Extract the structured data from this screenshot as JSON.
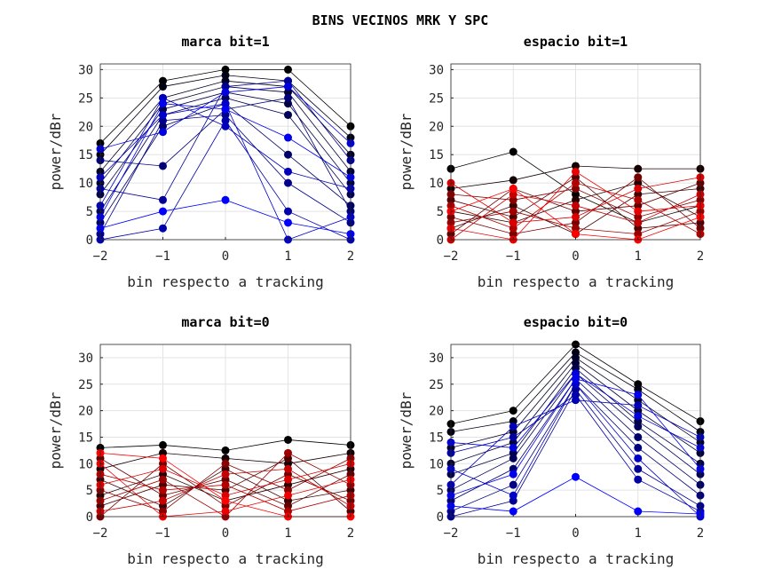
{
  "figure_title": "BINS VECINOS MRK Y SPC",
  "chart_data": [
    {
      "type": "line",
      "title": "marca bit=1",
      "xlabel": "bin respecto a tracking",
      "ylabel": "power/dBr",
      "x": [
        -2,
        -1,
        0,
        1,
        2
      ],
      "xlim": [
        -2,
        2
      ],
      "ylim": [
        0,
        31
      ],
      "xticks": [
        -2,
        -1,
        0,
        1,
        2
      ],
      "yticks": [
        0,
        5,
        10,
        15,
        20,
        25,
        30
      ],
      "grid": true,
      "color_from": "#000000",
      "color_to": "#0000ff",
      "series": [
        [
          17,
          28,
          30,
          30,
          20
        ],
        [
          15,
          27,
          29,
          28,
          18
        ],
        [
          12,
          25,
          28,
          27,
          15
        ],
        [
          10,
          24,
          27,
          26,
          12
        ],
        [
          8,
          23,
          26,
          24,
          10
        ],
        [
          5,
          22,
          25,
          22,
          8
        ],
        [
          3,
          20,
          24,
          15,
          6
        ],
        [
          14,
          13,
          23,
          25,
          5
        ],
        [
          1,
          21,
          22,
          10,
          3
        ],
        [
          9,
          7,
          27,
          28,
          14
        ],
        [
          0,
          2,
          21,
          5,
          0
        ],
        [
          6,
          25,
          20,
          12,
          9
        ],
        [
          11,
          22,
          24,
          0,
          4
        ],
        [
          16,
          19,
          26,
          27,
          17
        ],
        [
          4,
          24,
          23,
          18,
          11
        ],
        [
          2,
          5,
          7,
          3,
          1
        ]
      ]
    },
    {
      "type": "line",
      "title": "espacio bit=1",
      "xlabel": "bin respecto a tracking",
      "ylabel": "power/dBr",
      "x": [
        -2,
        -1,
        0,
        1,
        2
      ],
      "xlim": [
        -2,
        2
      ],
      "ylim": [
        0,
        31
      ],
      "xticks": [
        -2,
        -1,
        0,
        1,
        2
      ],
      "yticks": [
        0,
        5,
        10,
        15,
        20,
        25,
        30
      ],
      "grid": true,
      "color_from": "#000000",
      "color_to": "#ff0000",
      "series": [
        [
          12.5,
          15.5,
          8,
          3,
          6
        ],
        [
          9,
          10.5,
          13,
          12.5,
          12.5
        ],
        [
          5,
          3,
          7,
          10,
          4
        ],
        [
          2,
          6,
          1,
          8,
          9
        ],
        [
          7,
          4,
          11,
          2,
          3
        ],
        [
          1,
          9,
          5,
          6,
          10
        ],
        [
          4,
          1,
          3,
          11,
          2
        ],
        [
          8,
          7,
          9,
          4,
          7
        ],
        [
          3,
          5,
          2,
          1,
          5
        ],
        [
          6,
          2,
          10,
          7,
          1
        ],
        [
          0,
          8,
          6,
          3,
          8
        ],
        [
          10,
          3,
          4,
          9,
          11
        ],
        [
          2,
          0,
          12,
          5,
          6
        ],
        [
          5,
          9,
          1,
          0,
          4
        ]
      ]
    },
    {
      "type": "line",
      "title": "marca bit=0",
      "xlabel": "bin respecto a tracking",
      "ylabel": "power/dBr",
      "x": [
        -2,
        -1,
        0,
        1,
        2
      ],
      "xlim": [
        -2,
        2
      ],
      "ylim": [
        0,
        32.5
      ],
      "xticks": [
        -2,
        -1,
        0,
        1,
        2
      ],
      "yticks": [
        0,
        5,
        10,
        15,
        20,
        25,
        30
      ],
      "grid": true,
      "color_from": "#000000",
      "color_to": "#ff0000",
      "series": [
        [
          13,
          13.5,
          12.5,
          14.5,
          13.5
        ],
        [
          9,
          12,
          11,
          10,
          12
        ],
        [
          4,
          8,
          3,
          6,
          9
        ],
        [
          7,
          2,
          9,
          3,
          5
        ],
        [
          2,
          6,
          5,
          11,
          1
        ],
        [
          11,
          4,
          7,
          2,
          8
        ],
        [
          0,
          10,
          2,
          8,
          3
        ],
        [
          5,
          1,
          10,
          5,
          11
        ],
        [
          3,
          7,
          0,
          12,
          6
        ],
        [
          8,
          5,
          6,
          1,
          4
        ],
        [
          1,
          3,
          8,
          9,
          2
        ],
        [
          6,
          9,
          4,
          7,
          10
        ],
        [
          10,
          0,
          1,
          4,
          7
        ],
        [
          12,
          11,
          3,
          0,
          0
        ]
      ]
    },
    {
      "type": "line",
      "title": "espacio bit=0",
      "xlabel": "bin respecto a tracking",
      "ylabel": "power/dBr",
      "x": [
        -2,
        -1,
        0,
        1,
        2
      ],
      "xlim": [
        -2,
        2
      ],
      "ylim": [
        0,
        32.5
      ],
      "xticks": [
        -2,
        -1,
        0,
        1,
        2
      ],
      "yticks": [
        0,
        5,
        10,
        15,
        20,
        25,
        30
      ],
      "grid": true,
      "color_from": "#000000",
      "color_to": "#0000ff",
      "series": [
        [
          17.5,
          20,
          32.5,
          25,
          18
        ],
        [
          16,
          18,
          31,
          24,
          16
        ],
        [
          13,
          16,
          30,
          22,
          14
        ],
        [
          10,
          14,
          29,
          20,
          12
        ],
        [
          8,
          12,
          28,
          18,
          10
        ],
        [
          5,
          11,
          27,
          17,
          8
        ],
        [
          3,
          9,
          26,
          15,
          6
        ],
        [
          1,
          6,
          25,
          13,
          4
        ],
        [
          0,
          3,
          24,
          9,
          2
        ],
        [
          12,
          15,
          23,
          7,
          1
        ],
        [
          6,
          17,
          22,
          21,
          15
        ],
        [
          9,
          4,
          25,
          11,
          0
        ],
        [
          14,
          13,
          27,
          19,
          13
        ],
        [
          4,
          8,
          26,
          23,
          9
        ],
        [
          2,
          1,
          7.5,
          1,
          0.5
        ]
      ]
    }
  ]
}
